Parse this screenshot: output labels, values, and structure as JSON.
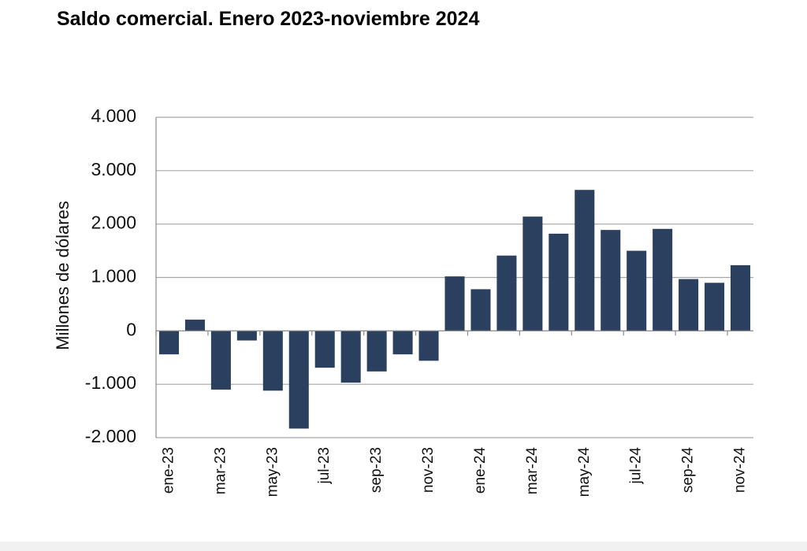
{
  "chart_data": {
    "type": "bar",
    "title": "Saldo comercial. Enero 2023-noviembre 2024",
    "ylabel": "Millones de dólares",
    "xlabel": "",
    "ylim": [
      -2000,
      4000
    ],
    "yticks": [
      4000,
      3000,
      2000,
      1000,
      0,
      -1000,
      -2000
    ],
    "ytick_labels": [
      "4.000",
      "3.000",
      "2.000",
      "1.000",
      "0",
      "-1.000",
      "-2.000"
    ],
    "grid": true,
    "bar_color": "#2b3f5f",
    "categories": [
      "ene-23",
      "feb-23",
      "mar-23",
      "abr-23",
      "may-23",
      "jun-23",
      "jul-23",
      "ago-23",
      "sep-23",
      "oct-23",
      "nov-23",
      "dic-23",
      "ene-24",
      "feb-24",
      "mar-24",
      "abr-24",
      "may-24",
      "jun-24",
      "jul-24",
      "ago-24",
      "sep-24",
      "oct-24",
      "nov-24"
    ],
    "shown_tick_labels": [
      "ene-23",
      "mar-23",
      "may-23",
      "jul-23",
      "sep-23",
      "nov-23",
      "ene-24",
      "mar-24",
      "may-24",
      "jul-24",
      "sep-24",
      "nov-24"
    ],
    "values": [
      -440,
      210,
      -1100,
      -180,
      -1120,
      -1830,
      -690,
      -970,
      -760,
      -440,
      -560,
      1020,
      780,
      1410,
      2140,
      1820,
      2640,
      1890,
      1500,
      1910,
      970,
      900,
      1230
    ]
  }
}
